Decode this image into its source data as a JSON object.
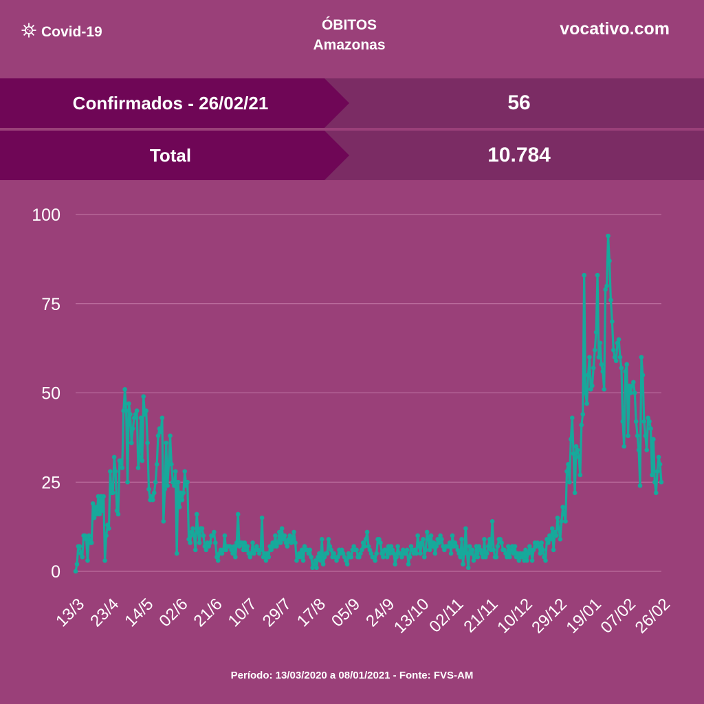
{
  "header": {
    "brand_label": "Covid-19",
    "brand_icon": "virus-icon",
    "title_line1": "ÓBITOS",
    "title_line2": "Amazonas",
    "site": "vocativo.com"
  },
  "summary": {
    "confirmed_label": "Confirmados - 26/02/21",
    "confirmed_value": "56",
    "total_label": "Total",
    "total_value": "10.784"
  },
  "footer": {
    "text": "Período: 13/03/2020 a 08/01/2021 - Fonte: FVS-AM"
  },
  "colors": {
    "background": "#9a4079",
    "row_dark": "#6f0656",
    "row_value": "#7b2c64",
    "line": "#17a99b"
  },
  "chart_data": {
    "type": "line",
    "title": "",
    "xlabel": "",
    "ylabel": "",
    "ylim": [
      0,
      100
    ],
    "yticks": [
      0,
      25,
      50,
      75,
      100
    ],
    "grid": true,
    "xticks": [
      "13/3",
      "23/4",
      "14/5",
      "02/6",
      "21/6",
      "10/7",
      "29/7",
      "17/8",
      "05/9",
      "24/9",
      "13/10",
      "02/11",
      "21/11",
      "10/12",
      "29/12",
      "19/01",
      "07/02",
      "26/02"
    ],
    "series": [
      {
        "name": "",
        "color": "#17a99b",
        "values": [
          0,
          2,
          7,
          7,
          5,
          4,
          10,
          10,
          9,
          3,
          10,
          8,
          8,
          19,
          15,
          18,
          16,
          21,
          16,
          21,
          17,
          21,
          3,
          10,
          13,
          12,
          28,
          22,
          22,
          32,
          28,
          17,
          16,
          31,
          31,
          29,
          45,
          51,
          45,
          25,
          47,
          44,
          36,
          40,
          43,
          44,
          45,
          29,
          32,
          43,
          31,
          49,
          44,
          45,
          36,
          23,
          20,
          21,
          20,
          22,
          25,
          30,
          38,
          40,
          39,
          43,
          14,
          23,
          36,
          24,
          30,
          38,
          30,
          25,
          24,
          28,
          5,
          25,
          18,
          22,
          20,
          22,
          28,
          24,
          25,
          9,
          8,
          11,
          12,
          10,
          6,
          16,
          11,
          8,
          12,
          12,
          10,
          7,
          6,
          8,
          7,
          8,
          10,
          10,
          11,
          8,
          4,
          3,
          5,
          6,
          5,
          6,
          10,
          6,
          7,
          7,
          7,
          6,
          5,
          7,
          4,
          8,
          16,
          7,
          8,
          8,
          6,
          8,
          6,
          7,
          5,
          4,
          5,
          8,
          5,
          6,
          7,
          6,
          5,
          6,
          15,
          4,
          5,
          3,
          5,
          4,
          7,
          6,
          8,
          7,
          10,
          7,
          8,
          11,
          8,
          12,
          9,
          10,
          8,
          7,
          9,
          10,
          8,
          9,
          11,
          8,
          3,
          4,
          5,
          4,
          6,
          3,
          7,
          6,
          6,
          5,
          6,
          4,
          1,
          2,
          3,
          1,
          4,
          5,
          3,
          9,
          2,
          4,
          5,
          5,
          9,
          7,
          6,
          4,
          5,
          4,
          3,
          4,
          6,
          5,
          6,
          5,
          4,
          3,
          2,
          5,
          4,
          4,
          6,
          7,
          6,
          6,
          4,
          4,
          5,
          6,
          8,
          7,
          9,
          11,
          7,
          6,
          5,
          4,
          4,
          3,
          5,
          9,
          9,
          8,
          5,
          4,
          6,
          6,
          4,
          7,
          5,
          7,
          6,
          5,
          2,
          4,
          7,
          5,
          5,
          4,
          6,
          5,
          5,
          6,
          2,
          4,
          7,
          6,
          5,
          6,
          5,
          10,
          7,
          5,
          8,
          9,
          4,
          6,
          11,
          9,
          6,
          10,
          7,
          8,
          5,
          7,
          9,
          8,
          10,
          9,
          7,
          6,
          7,
          7,
          7,
          8,
          5,
          10,
          7,
          8,
          7,
          6,
          5,
          4,
          9,
          2,
          6,
          12,
          5,
          1,
          7,
          5,
          6,
          3,
          4,
          7,
          4,
          7,
          6,
          5,
          4,
          9,
          4,
          5,
          7,
          9,
          6,
          14,
          6,
          4,
          4,
          7,
          9,
          9,
          8,
          6,
          6,
          5,
          4,
          7,
          4,
          6,
          7,
          5,
          7,
          4,
          5,
          3,
          5,
          4,
          5,
          3,
          6,
          3,
          5,
          7,
          6,
          3,
          6,
          8,
          7,
          8,
          7,
          5,
          8,
          6,
          4,
          3,
          9,
          8,
          10,
          9,
          12,
          6,
          11,
          10,
          15,
          12,
          9,
          14,
          18,
          16,
          14,
          28,
          30,
          25,
          37,
          43,
          33,
          22,
          35,
          34,
          32,
          27,
          41,
          44,
          83,
          50,
          47,
          55,
          60,
          51,
          52,
          57,
          62,
          67,
          83,
          60,
          64,
          58,
          56,
          51,
          79,
          80,
          94,
          87,
          76,
          70,
          62,
          60,
          59,
          64,
          65,
          60,
          57,
          42,
          35,
          56,
          58,
          38,
          52,
          50,
          52,
          53,
          50,
          42,
          38,
          34,
          24,
          60,
          55,
          42,
          38,
          34,
          43,
          42,
          40,
          27,
          37,
          25,
          22,
          28,
          32,
          30,
          25
        ]
      }
    ]
  }
}
